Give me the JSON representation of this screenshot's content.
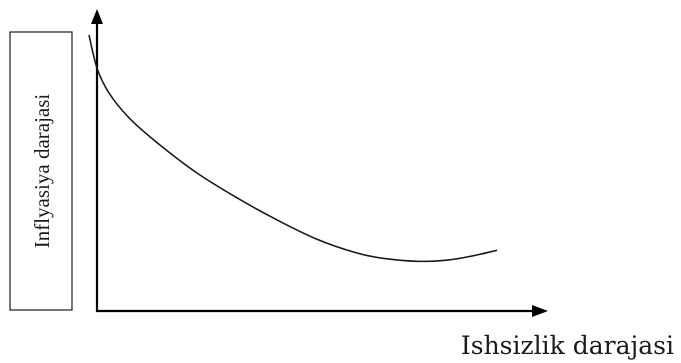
{
  "chart_data": {
    "type": "line",
    "title": "",
    "xlabel": "Ishsizlik darajasi",
    "ylabel": "Inflyasiya darajasi",
    "grid": false,
    "ticks": false,
    "xlim": [
      0,
      100
    ],
    "ylim": [
      0,
      100
    ],
    "series": [
      {
        "x": [
          -2,
          0,
          3,
          8,
          15,
          25,
          35,
          45,
          55,
          65,
          72,
          80,
          88,
          94,
          100
        ],
        "values": [
          100,
          88,
          79,
          70,
          61,
          50,
          41,
          33,
          26,
          21,
          19,
          18,
          18.5,
          20,
          22
        ]
      }
    ],
    "colors": {
      "line": "#1a1a1a",
      "axis": "#000000",
      "background": "#ffffff"
    }
  }
}
